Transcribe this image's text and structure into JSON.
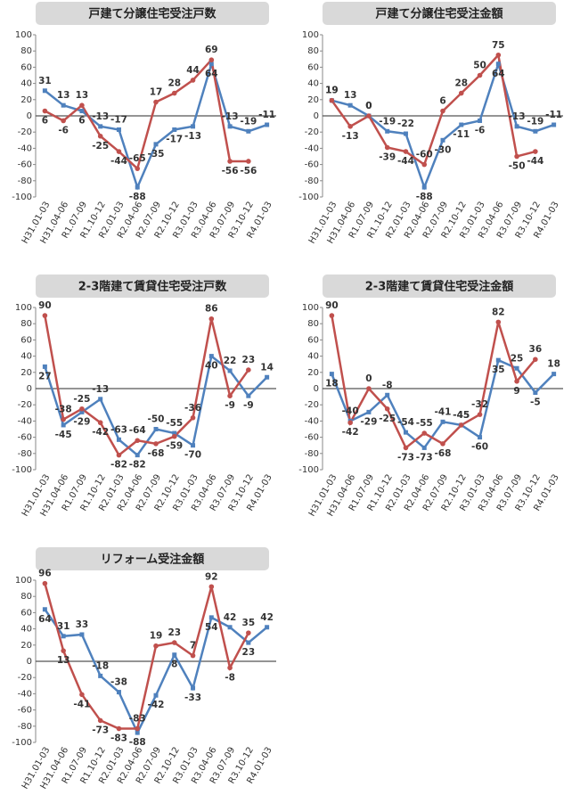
{
  "chart_data": [
    {
      "type": "line",
      "title": "戸建て分譲住宅受注戸数",
      "categories": [
        "H31.01-03",
        "H31.04-06",
        "R1.07-09",
        "R1.10-12",
        "R2.01-03",
        "R2.04-06",
        "R2.07-09",
        "R2.10-12",
        "R3.01-03",
        "R3.04-06",
        "R3.07-09",
        "R3.10-12",
        "R4.01-03"
      ],
      "series": [
        {
          "name": null,
          "color": "#4f81bd",
          "values": [
            31,
            13,
            6,
            -13,
            -17,
            -88,
            -35,
            -17,
            -13,
            64,
            -13,
            -19,
            -11
          ]
        },
        {
          "name": null,
          "color": "#c0504d",
          "values": [
            6,
            -6,
            13,
            -25,
            -44,
            -65,
            17,
            28,
            44,
            69,
            -56,
            -56,
            null
          ]
        }
      ],
      "ylim": [
        -100,
        100
      ],
      "yticks": [
        -100,
        -80,
        -60,
        -40,
        -20,
        0,
        20,
        40,
        60,
        80,
        100
      ],
      "grid": false
    },
    {
      "type": "line",
      "title": "戸建て分譲住宅受注金額",
      "categories": [
        "H31.01-03",
        "H31.04-06",
        "R1.07-09",
        "R1.10-12",
        "R2.01-03",
        "R2.04-06",
        "R2.07-09",
        "R2.10-12",
        "R3.01-03",
        "R3.04-06",
        "R3.07-09",
        "R3.10-12",
        "R4.01-03"
      ],
      "series": [
        {
          "name": null,
          "color": "#4f81bd",
          "values": [
            19,
            13,
            0,
            -19,
            -22,
            -88,
            -30,
            -11,
            -6,
            64,
            -13,
            -19,
            -11
          ]
        },
        {
          "name": null,
          "color": "#c0504d",
          "values": [
            19,
            -13,
            0,
            -39,
            -44,
            -60,
            6,
            28,
            50,
            75,
            -50,
            -44,
            null
          ]
        }
      ],
      "ylim": [
        -100,
        100
      ],
      "yticks": [
        -100,
        -80,
        -60,
        -40,
        -20,
        0,
        20,
        40,
        60,
        80,
        100
      ],
      "grid": false
    },
    {
      "type": "line",
      "title": "2-3階建て賃貸住宅受注戸数",
      "categories": [
        "H31.01-03",
        "H31.04-06",
        "R1.07-09",
        "R1.10-12",
        "R2.01-03",
        "R2.04-06",
        "R2.07-09",
        "R2.10-12",
        "R3.01-03",
        "R3.04-06",
        "R3.07-09",
        "R3.10-12",
        "R4.01-03"
      ],
      "series": [
        {
          "name": null,
          "color": "#4f81bd",
          "values": [
            27,
            -45,
            -29,
            -13,
            -63,
            -82,
            -50,
            -55,
            -70,
            40,
            22,
            -9,
            14
          ]
        },
        {
          "name": null,
          "color": "#c0504d",
          "values": [
            90,
            -38,
            -25,
            -42,
            -82,
            -64,
            -68,
            -59,
            -36,
            86,
            -9,
            23,
            null
          ]
        }
      ],
      "ylim": [
        -100,
        100
      ],
      "yticks": [
        -100,
        -80,
        -60,
        -40,
        -20,
        0,
        20,
        40,
        60,
        80,
        100
      ],
      "grid": false
    },
    {
      "type": "line",
      "title": "2-3階建て賃貸住宅受注金額",
      "categories": [
        "H31.01-03",
        "H31.04-06",
        "R1.07-09",
        "R1.10-12",
        "R2.01-03",
        "R2.04-06",
        "R2.07-09",
        "R2.10-12",
        "R3.01-03",
        "R3.04-06",
        "R3.07-09",
        "R3.10-12",
        "R4.01-03"
      ],
      "series": [
        {
          "name": null,
          "color": "#4f81bd",
          "values": [
            18,
            -40,
            -29,
            -8,
            -54,
            -73,
            -41,
            -45,
            -60,
            35,
            25,
            -5,
            18
          ]
        },
        {
          "name": null,
          "color": "#c0504d",
          "values": [
            90,
            -42,
            0,
            -25,
            -73,
            -55,
            -68,
            -45,
            -32,
            82,
            9,
            36,
            null
          ]
        }
      ],
      "ylim": [
        -100,
        100
      ],
      "yticks": [
        -100,
        -80,
        -60,
        -40,
        -20,
        0,
        20,
        40,
        60,
        80,
        100
      ],
      "grid": false
    },
    {
      "type": "line",
      "title": "リフォーム受注金額",
      "categories": [
        "H31.01-03",
        "H31.04-06",
        "R1.07-09",
        "R1.10-12",
        "R2.01-03",
        "R2.04-06",
        "R2.07-09",
        "R2.10-12",
        "R3.01-03",
        "R3.04-06",
        "R3.07-09",
        "R3.10-12",
        "R4.01-03"
      ],
      "series": [
        {
          "name": null,
          "color": "#4f81bd",
          "values": [
            64,
            31,
            33,
            -18,
            -38,
            -88,
            -42,
            8,
            -33,
            54,
            42,
            23,
            42
          ]
        },
        {
          "name": null,
          "color": "#c0504d",
          "values": [
            96,
            13,
            -41,
            -73,
            -83,
            -83,
            19,
            23,
            7,
            92,
            -8,
            35,
            null
          ]
        }
      ],
      "ylim": [
        -100,
        100
      ],
      "yticks": [
        -100,
        -80,
        -60,
        -40,
        -20,
        0,
        20,
        40,
        60,
        80,
        100
      ],
      "grid": false
    }
  ]
}
